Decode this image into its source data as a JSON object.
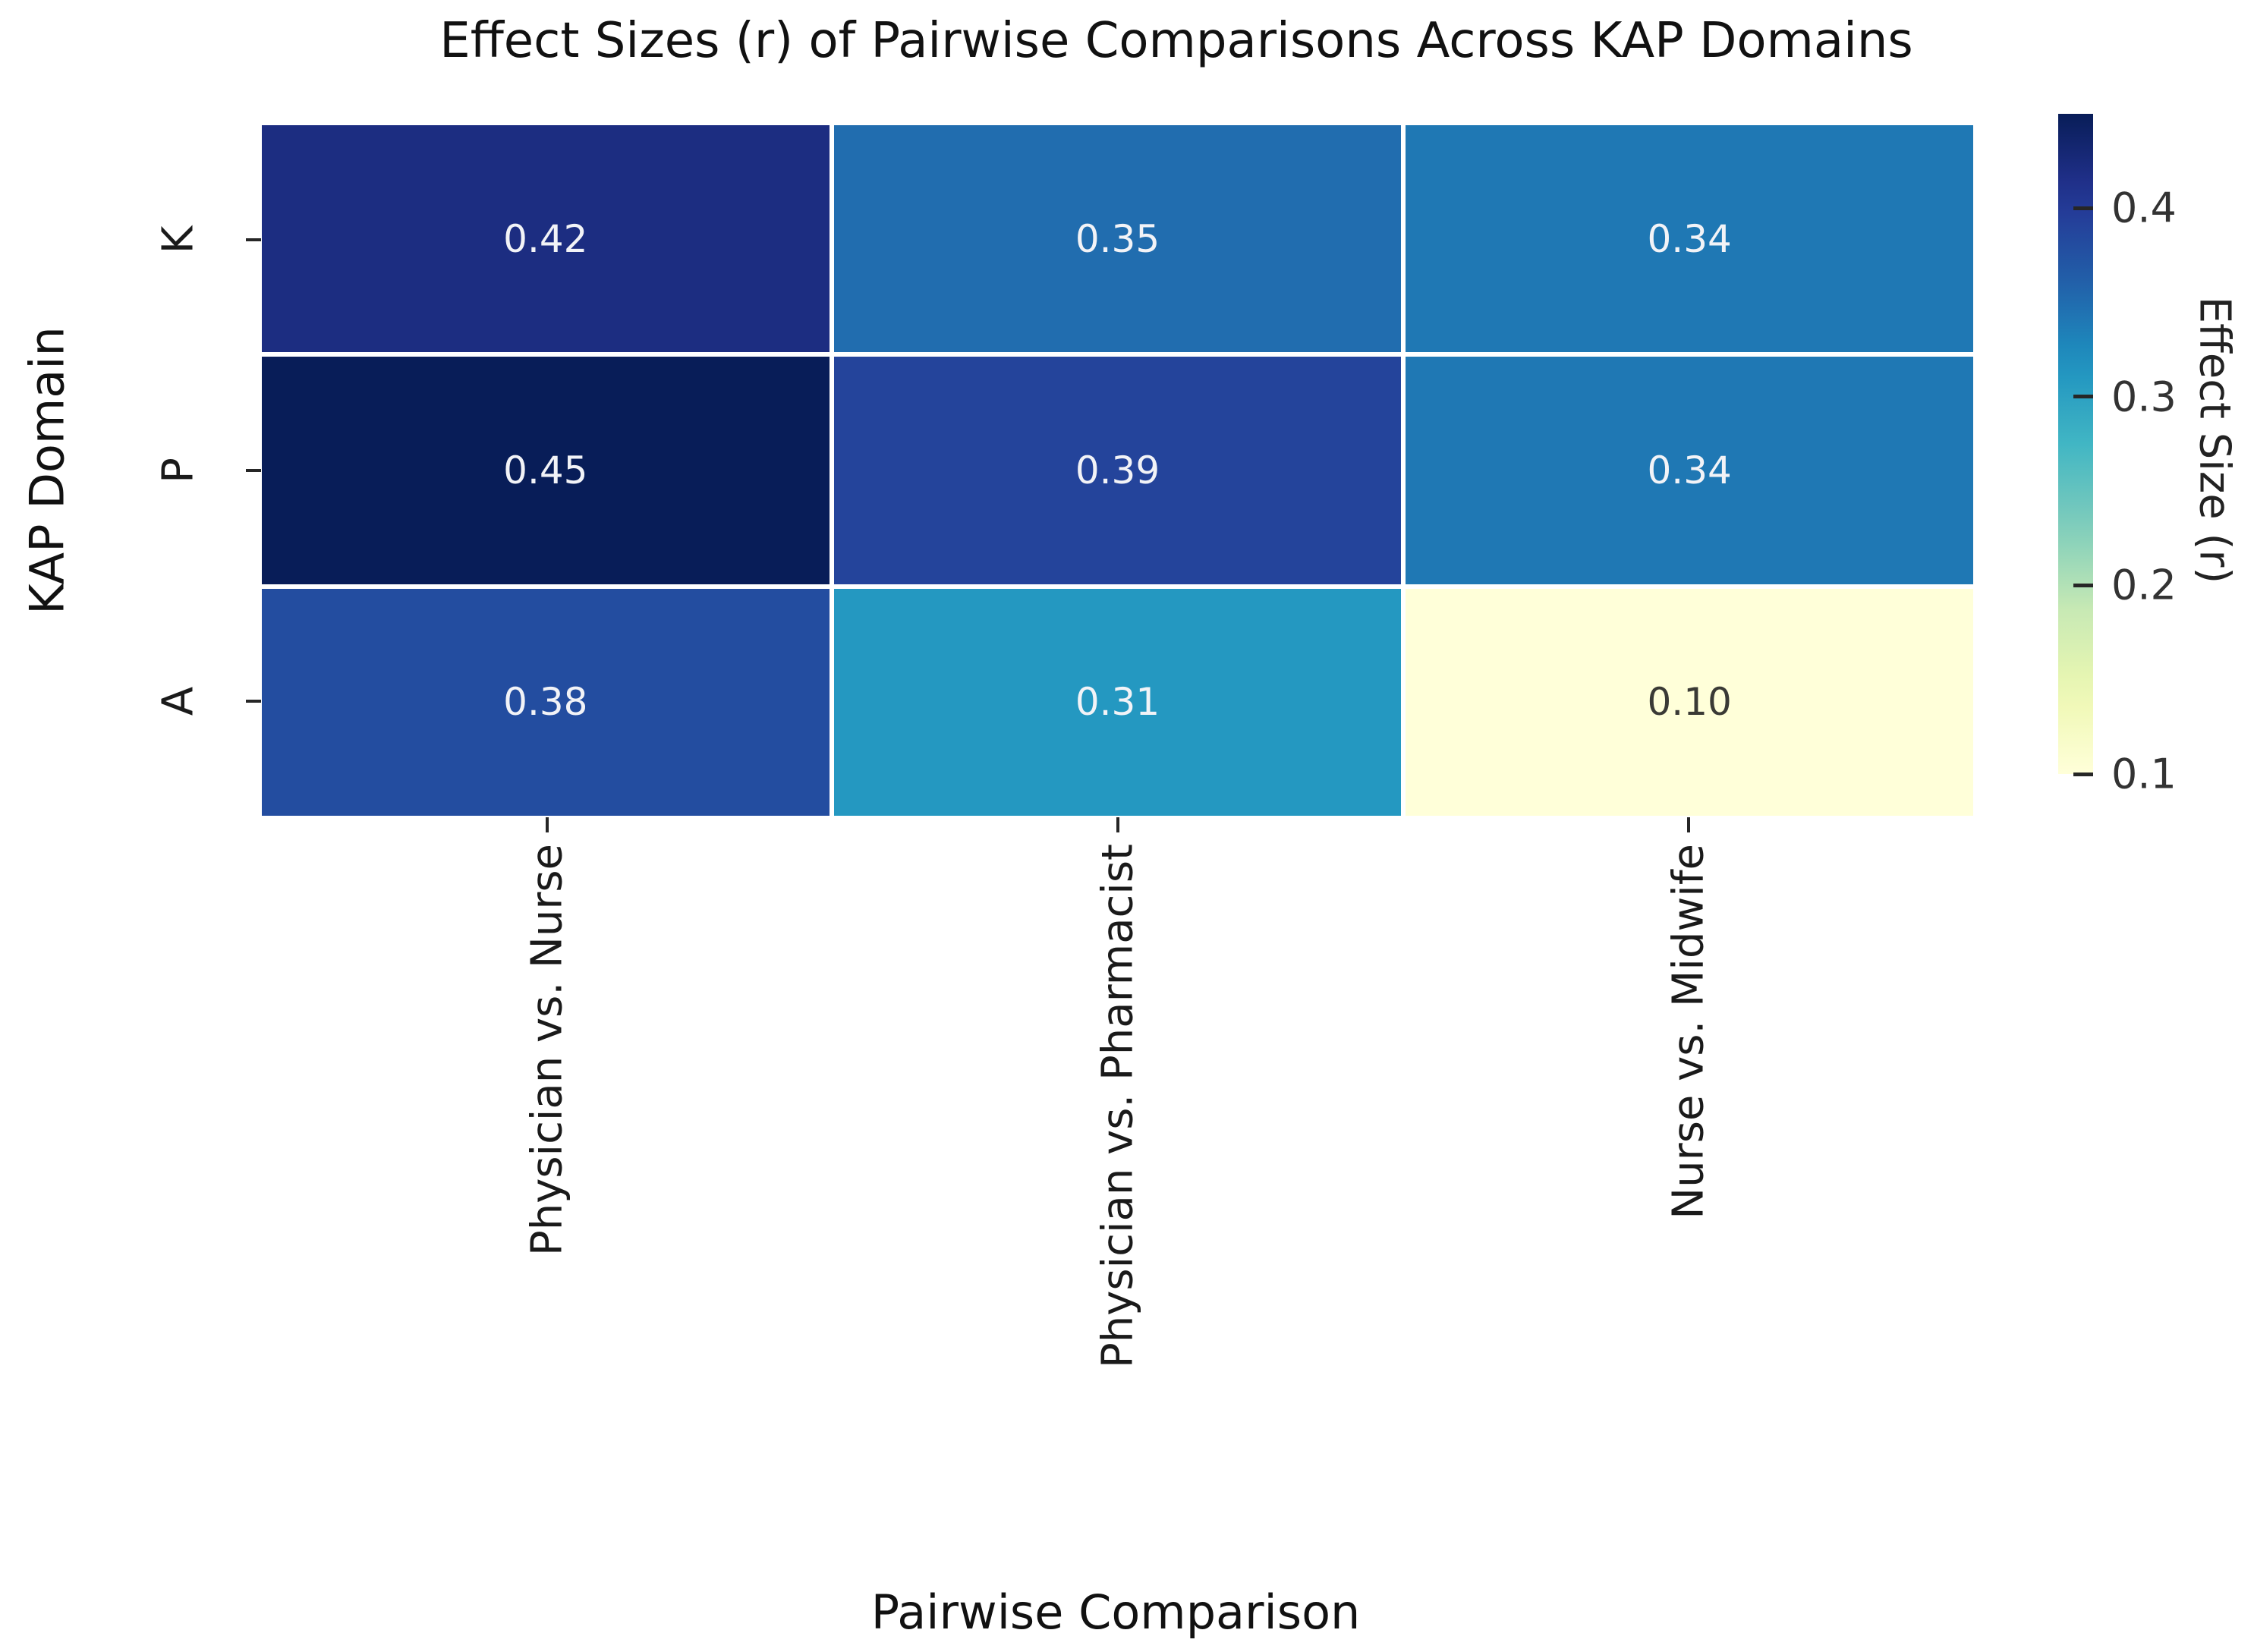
{
  "chart_data": {
    "type": "heatmap",
    "title": "Effect Sizes (r) of Pairwise Comparisons Across KAP Domains",
    "xlabel": "Pairwise Comparison",
    "ylabel": "KAP Domain",
    "x_categories": [
      "Physician vs. Nurse",
      "Physician vs. Pharmacist",
      "Nurse vs. Midwife"
    ],
    "y_categories": [
      "K",
      "P",
      "A"
    ],
    "values": [
      [
        0.42,
        0.35,
        0.34
      ],
      [
        0.45,
        0.39,
        0.34
      ],
      [
        0.38,
        0.31,
        0.1
      ]
    ],
    "cell_labels": [
      [
        "0.42",
        "0.35",
        "0.34"
      ],
      [
        "0.45",
        "0.39",
        "0.34"
      ],
      [
        "0.38",
        "0.31",
        "0.10"
      ]
    ],
    "grid_on": false,
    "gridline_color": "#ffffff",
    "legend_position": "right-colorbar",
    "colorbar": {
      "label": "Effect Size (r)",
      "ticks": [
        0.4,
        0.3,
        0.2,
        0.1
      ],
      "tick_labels": [
        "0.4",
        "0.3",
        "0.2",
        "0.1"
      ],
      "vmin": 0.1,
      "vmax": 0.45
    },
    "colormap": {
      "name": "YlGnBu",
      "stops": [
        {
          "t": 0.0,
          "color": "#ffffd9"
        },
        {
          "t": 0.125,
          "color": "#edf8b1"
        },
        {
          "t": 0.25,
          "color": "#c7e9b4"
        },
        {
          "t": 0.375,
          "color": "#7fcdbb"
        },
        {
          "t": 0.5,
          "color": "#41b6c4"
        },
        {
          "t": 0.625,
          "color": "#1d91c0"
        },
        {
          "t": 0.75,
          "color": "#225ea8"
        },
        {
          "t": 0.875,
          "color": "#253494"
        },
        {
          "t": 1.0,
          "color": "#081d58"
        }
      ]
    },
    "annotation_text_colors": {
      "light": "#f2f3f7",
      "dark": "#3a3a35"
    }
  }
}
